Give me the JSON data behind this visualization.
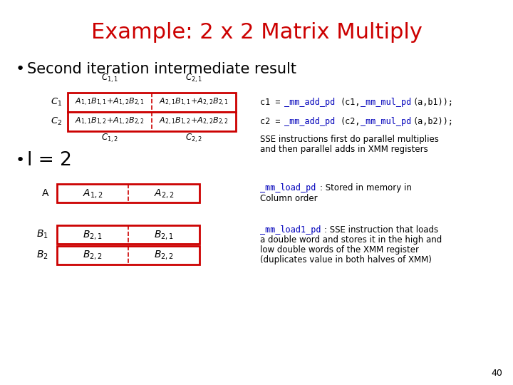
{
  "title": "Example: 2 x 2 Matrix Multiply",
  "title_color": "#CC0000",
  "bg_color": "#FFFFFF",
  "bullet1": "Second iteration intermediate result",
  "bullet2": "l = 2",
  "page_number": "40",
  "red": "#CC0000",
  "blue": "#0000BB",
  "black": "#000000"
}
